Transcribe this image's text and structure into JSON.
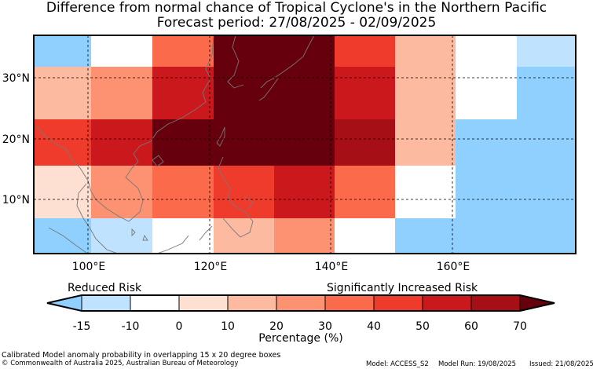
{
  "title": "Difference from normal chance of Tropical Cyclone's in the Northern Pacific",
  "subtitle": "Forecast period: 27/08/2025 - 02/09/2025",
  "lat_labels": [
    "30°N",
    "20°N",
    "10°N"
  ],
  "lon_labels": [
    "100°E",
    "120°E",
    "140°E",
    "160°E"
  ],
  "legend": {
    "left_label": "Reduced Risk",
    "right_label": "Significantly Increased Risk",
    "ticks": [
      "-15",
      "-10",
      "0",
      "10",
      "20",
      "30",
      "40",
      "50",
      "60",
      "70"
    ],
    "xlabel": "Percentage (%)",
    "colors": [
      "#8fd0ff",
      "#bfe3ff",
      "#ffffff",
      "#fee0d2",
      "#fcbba1",
      "#fc9272",
      "#fb6a4a",
      "#ef3b2c",
      "#cb181d",
      "#a50f15",
      "#67000d"
    ]
  },
  "footer": {
    "description": "Calibrated Model anomaly probability in overlapping 15 x 20 degree boxes",
    "copyright": "© Commonwealth of Australia 2025, Australian Bureau of Meteorology",
    "model": "Model: ACCESS_S2",
    "model_run": "Model Run: 19/08/2025",
    "issued": "Issued: 21/08/2025"
  }
}
